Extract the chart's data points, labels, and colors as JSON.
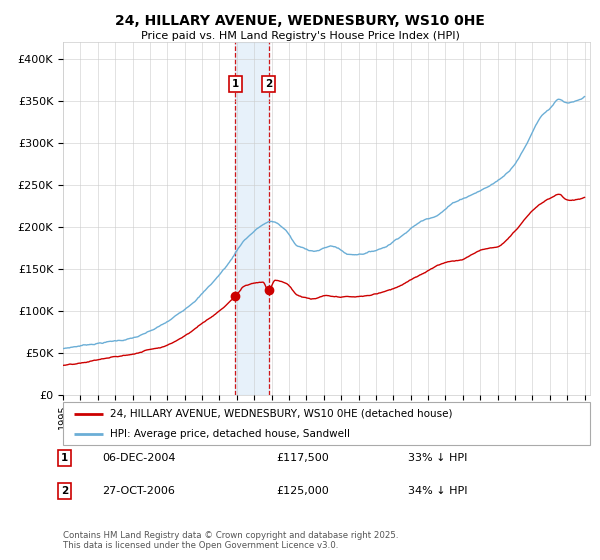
{
  "title": "24, HILLARY AVENUE, WEDNESBURY, WS10 0HE",
  "subtitle": "Price paid vs. HM Land Registry's House Price Index (HPI)",
  "hpi_label": "HPI: Average price, detached house, Sandwell",
  "property_label": "24, HILLARY AVENUE, WEDNESBURY, WS10 0HE (detached house)",
  "hpi_color": "#6baed6",
  "property_color": "#cc0000",
  "sale1_date": "06-DEC-2004",
  "sale1_price": 117500,
  "sale1_note": "33% ↓ HPI",
  "sale2_date": "27-OCT-2006",
  "sale2_price": 125000,
  "sale2_note": "34% ↓ HPI",
  "yticks": [
    0,
    50000,
    100000,
    150000,
    200000,
    250000,
    300000,
    350000,
    400000
  ],
  "ytick_labels": [
    "£0",
    "£50K",
    "£100K",
    "£150K",
    "£200K",
    "£250K",
    "£300K",
    "£350K",
    "£400K"
  ],
  "footer": "Contains HM Land Registry data © Crown copyright and database right 2025.\nThis data is licensed under the Open Government Licence v3.0.",
  "sale1_year": 2004.92,
  "sale2_year": 2006.82,
  "vline_color": "#cc0000",
  "vbox_color": "#d0e4f7",
  "background_color": "#ffffff",
  "grid_color": "#cccccc",
  "hpi_key_points": [
    [
      1995.0,
      55000
    ],
    [
      1997.0,
      62000
    ],
    [
      1999.0,
      68000
    ],
    [
      2001.0,
      85000
    ],
    [
      2003.0,
      120000
    ],
    [
      2004.5,
      155000
    ],
    [
      2005.5,
      185000
    ],
    [
      2007.0,
      205000
    ],
    [
      2007.8,
      195000
    ],
    [
      2008.5,
      175000
    ],
    [
      2009.5,
      170000
    ],
    [
      2010.5,
      175000
    ],
    [
      2011.5,
      165000
    ],
    [
      2012.5,
      168000
    ],
    [
      2013.5,
      175000
    ],
    [
      2014.5,
      190000
    ],
    [
      2015.5,
      205000
    ],
    [
      2016.5,
      215000
    ],
    [
      2017.5,
      230000
    ],
    [
      2018.5,
      240000
    ],
    [
      2019.5,
      250000
    ],
    [
      2020.5,
      265000
    ],
    [
      2021.5,
      295000
    ],
    [
      2022.5,
      335000
    ],
    [
      2023.0,
      345000
    ],
    [
      2023.5,
      355000
    ],
    [
      2024.0,
      350000
    ],
    [
      2025.0,
      355000
    ]
  ],
  "prop_key_points": [
    [
      1995.0,
      35000
    ],
    [
      1996.0,
      36000
    ],
    [
      1997.0,
      40000
    ],
    [
      1998.0,
      43000
    ],
    [
      1999.0,
      46000
    ],
    [
      2000.0,
      52000
    ],
    [
      2001.0,
      58000
    ],
    [
      2002.0,
      70000
    ],
    [
      2003.0,
      85000
    ],
    [
      2004.0,
      100000
    ],
    [
      2004.92,
      117500
    ],
    [
      2005.5,
      130000
    ],
    [
      2006.5,
      135000
    ],
    [
      2006.82,
      125000
    ],
    [
      2007.2,
      138000
    ],
    [
      2007.8,
      135000
    ],
    [
      2008.5,
      120000
    ],
    [
      2009.5,
      115000
    ],
    [
      2010.0,
      118000
    ],
    [
      2011.0,
      115000
    ],
    [
      2012.0,
      115000
    ],
    [
      2013.0,
      118000
    ],
    [
      2014.0,
      125000
    ],
    [
      2015.0,
      135000
    ],
    [
      2016.0,
      145000
    ],
    [
      2017.0,
      155000
    ],
    [
      2018.0,
      160000
    ],
    [
      2019.0,
      170000
    ],
    [
      2020.0,
      175000
    ],
    [
      2021.0,
      195000
    ],
    [
      2022.0,
      220000
    ],
    [
      2023.0,
      235000
    ],
    [
      2023.5,
      240000
    ],
    [
      2024.0,
      232000
    ],
    [
      2025.0,
      235000
    ]
  ]
}
